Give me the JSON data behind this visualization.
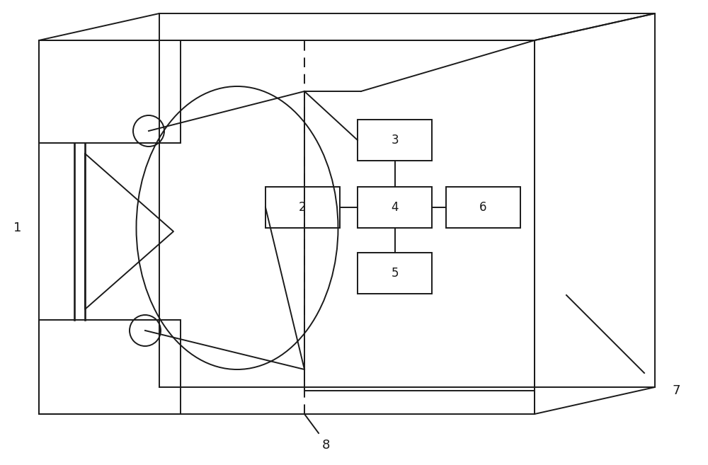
{
  "bg_color": "#ffffff",
  "line_color": "#1a1a1a",
  "fig_width": 10.0,
  "fig_height": 6.57,
  "dpi": 100,
  "label_1": "1",
  "label_2": "2",
  "label_3": "3",
  "label_4": "4",
  "label_5": "5",
  "label_6": "6",
  "label_7": "7",
  "label_8": "8"
}
